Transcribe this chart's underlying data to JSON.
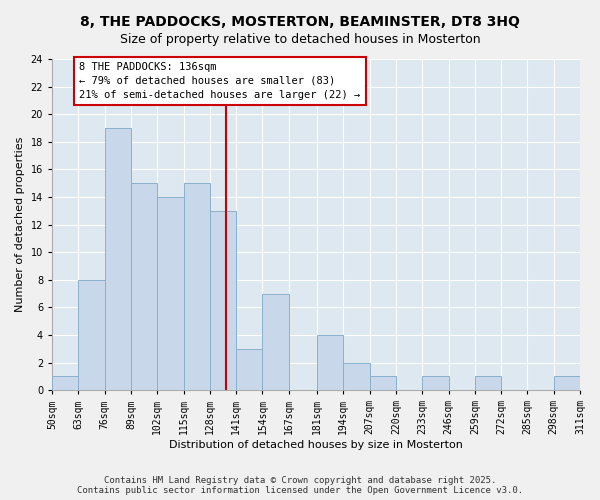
{
  "title": "8, THE PADDOCKS, MOSTERTON, BEAMINSTER, DT8 3HQ",
  "subtitle": "Size of property relative to detached houses in Mosterton",
  "xlabel": "Distribution of detached houses by size in Mosterton",
  "ylabel": "Number of detached properties",
  "bin_edges": [
    50,
    63,
    76,
    89,
    102,
    115,
    128,
    141,
    154,
    167,
    181,
    194,
    207,
    220,
    233,
    246,
    259,
    272,
    285,
    298,
    311
  ],
  "bin_counts": [
    1,
    8,
    19,
    15,
    14,
    15,
    13,
    3,
    7,
    0,
    4,
    2,
    1,
    0,
    1,
    0,
    1,
    0,
    0,
    1
  ],
  "bar_color": "#c8d8ea",
  "bar_edge_color": "#8ab0cc",
  "property_size": 136,
  "vline_color": "#cc0000",
  "annotation_line1": "8 THE PADDOCKS: 136sqm",
  "annotation_line2": "← 79% of detached houses are smaller (83)",
  "annotation_line3": "21% of semi-detached houses are larger (22) →",
  "annotation_box_color": "#cc0000",
  "ylim": [
    0,
    24
  ],
  "yticks": [
    0,
    2,
    4,
    6,
    8,
    10,
    12,
    14,
    16,
    18,
    20,
    22,
    24
  ],
  "grid_color": "#ffffff",
  "plot_bg_color": "#dde8f0",
  "fig_bg_color": "#f0f0f0",
  "footer_line1": "Contains HM Land Registry data © Crown copyright and database right 2025.",
  "footer_line2": "Contains public sector information licensed under the Open Government Licence v3.0.",
  "title_fontsize": 10,
  "subtitle_fontsize": 9,
  "axis_label_fontsize": 8,
  "tick_fontsize": 7,
  "annotation_fontsize": 7.5,
  "footer_fontsize": 6.5
}
